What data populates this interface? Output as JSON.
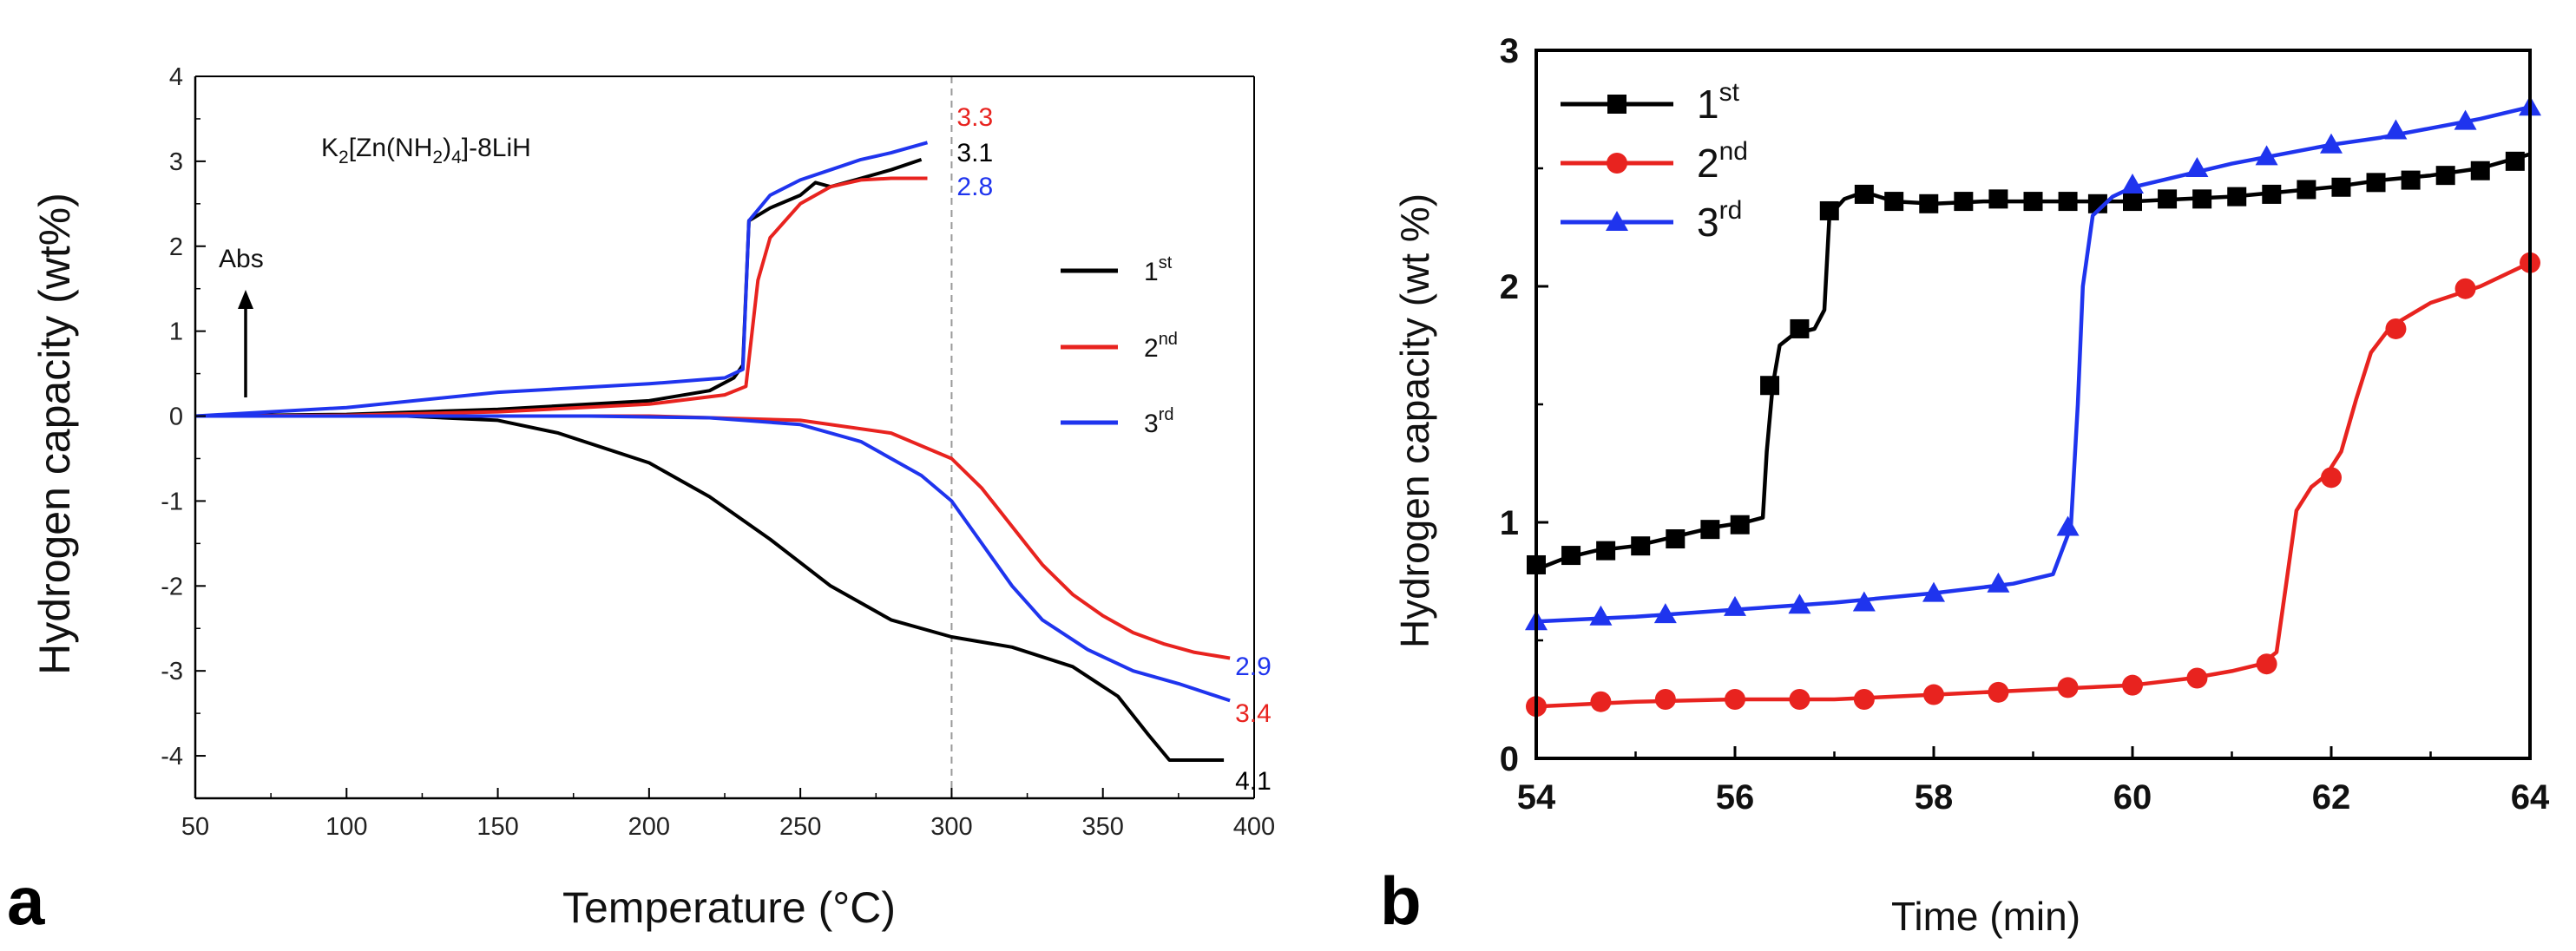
{
  "chart_data": [
    {
      "type": "line",
      "panel_label": "a",
      "title": "",
      "compound": {
        "base": "K",
        "sub1": "2",
        "mid": "[Zn(NH",
        "sub2": "2",
        "post": ")",
        "sub3": "4",
        "tail": "]-8LiH"
      },
      "xlabel": "Temperature (°C)",
      "ylabel": "Hydrogen capacity (wt%)",
      "xlim": [
        50,
        400
      ],
      "ylim": [
        -4.5,
        4
      ],
      "xticks": [
        50,
        100,
        150,
        200,
        250,
        300,
        350,
        400
      ],
      "yticks": [
        -4,
        -3,
        -2,
        -1,
        0,
        1,
        2,
        3,
        4
      ],
      "arrow_label": "Abs",
      "ref_line_x": 300,
      "series": [
        {
          "name": "1",
          "sup": "st",
          "color": "#000000",
          "absorption": {
            "x": [
              50,
              100,
              150,
              200,
              220,
              228,
              231,
              233,
              240,
              250,
              255,
              260,
              270,
              280,
              290
            ],
            "y": [
              0,
              0.02,
              0.08,
              0.18,
              0.3,
              0.45,
              0.6,
              2.3,
              2.45,
              2.6,
              2.75,
              2.7,
              2.8,
              2.9,
              3.02
            ]
          },
          "desorption": {
            "x": [
              50,
              120,
              150,
              170,
              200,
              220,
              240,
              260,
              280,
              300,
              320,
              340,
              355,
              365,
              372,
              390
            ],
            "y": [
              0,
              0,
              -0.05,
              -0.2,
              -0.55,
              -0.95,
              -1.45,
              -2.0,
              -2.4,
              -2.6,
              -2.72,
              -2.95,
              -3.3,
              -3.75,
              -4.05,
              -4.05
            ]
          }
        },
        {
          "name": "2",
          "sup": "nd",
          "color": "#e8231f",
          "absorption": {
            "x": [
              50,
              100,
              150,
              200,
              225,
              232,
              236,
              240,
              250,
              260,
              270,
              280,
              292
            ],
            "y": [
              0,
              0.01,
              0.05,
              0.14,
              0.25,
              0.35,
              1.6,
              2.1,
              2.5,
              2.7,
              2.78,
              2.8,
              2.8
            ]
          },
          "desorption": {
            "x": [
              50,
              200,
              250,
              280,
              300,
              310,
              320,
              330,
              340,
              350,
              360,
              370,
              380,
              392
            ],
            "y": [
              0,
              0,
              -0.05,
              -0.2,
              -0.5,
              -0.85,
              -1.3,
              -1.75,
              -2.1,
              -2.35,
              -2.55,
              -2.68,
              -2.78,
              -2.85
            ]
          }
        },
        {
          "name": "3",
          "sup": "rd",
          "color": "#1f34ee",
          "absorption": {
            "x": [
              50,
              100,
              150,
              200,
              225,
              231,
              233,
              240,
              250,
              260,
              270,
              280,
              292
            ],
            "y": [
              0,
              0.1,
              0.28,
              0.38,
              0.45,
              0.55,
              2.3,
              2.6,
              2.78,
              2.9,
              3.02,
              3.1,
              3.22
            ]
          },
          "desorption": {
            "x": [
              50,
              180,
              220,
              250,
              270,
              290,
              300,
              310,
              320,
              330,
              345,
              360,
              375,
              392
            ],
            "y": [
              0,
              0,
              -0.02,
              -0.1,
              -0.3,
              -0.7,
              -1.0,
              -1.5,
              -2.0,
              -2.4,
              -2.75,
              -3.0,
              -3.15,
              -3.35
            ]
          }
        }
      ],
      "annotations": [
        {
          "text": "3.3",
          "x": 300,
          "y": 3.42,
          "color": "#e8231f"
        },
        {
          "text": "3.1",
          "x": 300,
          "y": 3.0,
          "color": "#000000"
        },
        {
          "text": "2.8",
          "x": 300,
          "y": 2.6,
          "color": "#1f34ee"
        },
        {
          "text": "2.9",
          "x": 392,
          "y": -3.05,
          "color": "#1f34ee"
        },
        {
          "text": "3.4",
          "x": 392,
          "y": -3.6,
          "color": "#e8231f"
        },
        {
          "text": "4.1",
          "x": 392,
          "y": -4.4,
          "color": "#000000"
        }
      ]
    },
    {
      "type": "line",
      "panel_label": "b",
      "title": "",
      "xlabel": "Time (min)",
      "ylabel": "Hydrogen capacity (wt %)",
      "xlim": [
        54,
        64
      ],
      "ylim": [
        0,
        3
      ],
      "xticks": [
        54,
        56,
        58,
        60,
        62,
        64
      ],
      "yticks": [
        0,
        1,
        2,
        3
      ],
      "series": [
        {
          "name": "1",
          "sup": "st",
          "color": "#000000",
          "marker": "square",
          "x": [
            54,
            54.3,
            54.6,
            55,
            55.4,
            55.8,
            56.1,
            56.28,
            56.32,
            56.38,
            56.45,
            56.6,
            56.8,
            56.9,
            56.95,
            57.1,
            57.3,
            57.6,
            58,
            58.5,
            59,
            59.5,
            60,
            60.5,
            61,
            61.5,
            62,
            62.5,
            63,
            63.5,
            64
          ],
          "y": [
            0.8,
            0.85,
            0.88,
            0.9,
            0.94,
            0.98,
            1.0,
            1.02,
            1.3,
            1.58,
            1.75,
            1.8,
            1.82,
            1.9,
            2.3,
            2.37,
            2.4,
            2.36,
            2.35,
            2.36,
            2.36,
            2.36,
            2.36,
            2.37,
            2.38,
            2.4,
            2.42,
            2.45,
            2.47,
            2.5,
            2.56
          ],
          "markers_x": [
            54,
            54.35,
            54.7,
            55.05,
            55.4,
            55.75,
            56.05,
            56.35,
            56.65,
            56.95,
            57.3,
            57.6,
            57.95,
            58.3,
            58.65,
            59,
            59.35,
            59.65,
            60,
            60.35,
            60.7,
            61.05,
            61.4,
            61.75,
            62.1,
            62.45,
            62.8,
            63.15,
            63.5,
            63.85
          ],
          "markers_y": [
            0.82,
            0.86,
            0.88,
            0.9,
            0.93,
            0.97,
            0.99,
            1.58,
            1.82,
            2.32,
            2.39,
            2.36,
            2.35,
            2.36,
            2.37,
            2.36,
            2.36,
            2.35,
            2.36,
            2.37,
            2.37,
            2.38,
            2.39,
            2.41,
            2.42,
            2.44,
            2.45,
            2.47,
            2.49,
            2.53
          ]
        },
        {
          "name": "2",
          "sup": "nd",
          "color": "#e8231f",
          "marker": "circle",
          "x": [
            54,
            55,
            56,
            57,
            58,
            59,
            60,
            60.6,
            61,
            61.3,
            61.45,
            61.55,
            61.65,
            61.8,
            61.95,
            62.1,
            62.25,
            62.4,
            62.6,
            63,
            63.5,
            64
          ],
          "y": [
            0.22,
            0.24,
            0.25,
            0.25,
            0.27,
            0.29,
            0.31,
            0.34,
            0.37,
            0.4,
            0.45,
            0.75,
            1.05,
            1.15,
            1.2,
            1.3,
            1.52,
            1.72,
            1.83,
            1.93,
            2.0,
            2.1
          ],
          "markers_x": [
            54,
            54.65,
            55.3,
            56,
            56.65,
            57.3,
            58,
            58.65,
            59.35,
            60,
            60.65,
            61.35,
            62,
            62.65,
            63.35,
            64
          ],
          "markers_y": [
            0.22,
            0.24,
            0.25,
            0.25,
            0.25,
            0.25,
            0.27,
            0.28,
            0.3,
            0.31,
            0.34,
            0.4,
            1.19,
            1.82,
            1.99,
            2.1
          ]
        },
        {
          "name": "3",
          "sup": "rd",
          "color": "#1f34ee",
          "marker": "triangle",
          "x": [
            54,
            55,
            56,
            57,
            58,
            58.8,
            59.2,
            59.38,
            59.45,
            59.5,
            59.6,
            59.8,
            60,
            60.5,
            61,
            61.5,
            62,
            62.5,
            63,
            63.5,
            64
          ],
          "y": [
            0.58,
            0.6,
            0.63,
            0.66,
            0.7,
            0.74,
            0.78,
            0.98,
            1.5,
            2.0,
            2.3,
            2.38,
            2.42,
            2.47,
            2.52,
            2.56,
            2.6,
            2.63,
            2.67,
            2.71,
            2.76
          ],
          "markers_x": [
            54,
            54.65,
            55.3,
            56,
            56.65,
            57.3,
            58,
            58.65,
            59.35,
            60,
            60.65,
            61.35,
            62,
            62.65,
            63.35,
            64
          ],
          "markers_y": [
            0.58,
            0.6,
            0.61,
            0.64,
            0.65,
            0.66,
            0.7,
            0.74,
            0.98,
            2.43,
            2.5,
            2.55,
            2.6,
            2.66,
            2.7,
            2.76
          ]
        }
      ]
    }
  ]
}
